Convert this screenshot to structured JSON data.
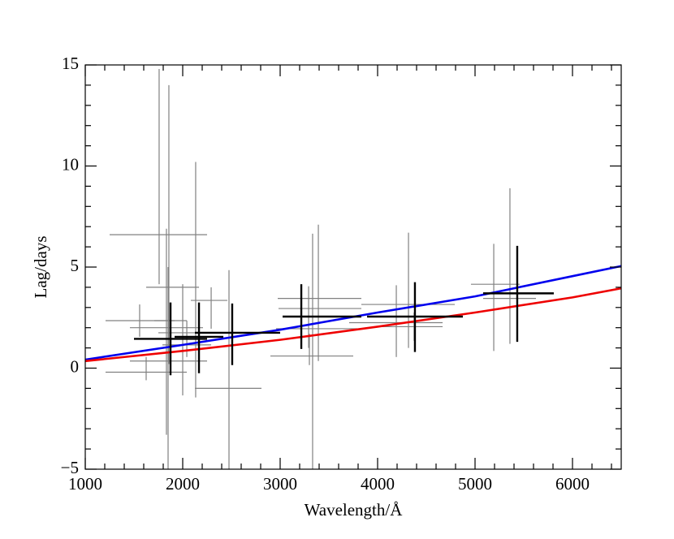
{
  "chart_data": {
    "type": "scatter",
    "xlabel": "Wavelength/Å",
    "ylabel": "Lag/days",
    "xlim": [
      1000,
      6500
    ],
    "ylim": [
      -5,
      15
    ],
    "xticks": [
      1000,
      2000,
      3000,
      4000,
      5000,
      6000
    ],
    "yticks": [
      {
        "value": -5,
        "label": "−5"
      },
      0,
      5,
      10,
      15
    ],
    "xminorticks": [
      1200,
      1400,
      1600,
      1800,
      2200,
      2400,
      2600,
      2800,
      3200,
      3400,
      3600,
      3800,
      4200,
      4400,
      4600,
      4800,
      5200,
      5400,
      5600,
      5800,
      6200,
      6400
    ],
    "yminorticks": [
      -4,
      -3,
      -2,
      -1,
      1,
      2,
      3,
      4,
      6,
      7,
      8,
      9,
      11,
      12,
      13,
      14
    ],
    "crosses": [
      {
        "color": "#808080",
        "width": 1.2,
        "x": [
          1758,
          1858,
          1833,
          1850,
          2000,
          2133,
          2042,
          2292,
          2475,
          1558,
          1625,
          3333,
          3392,
          3292,
          3300,
          4192,
          4317,
          4375,
          5192,
          5358
        ],
        "xlo": [
          1250,
          1708,
          1458,
          1458,
          1625,
          1750,
          1792,
          2083,
          2125,
          1208,
          1208,
          2958,
          2975,
          2983,
          2900,
          3708,
          3833,
          4042,
          4958,
          5083
        ],
        "xhi": [
          2250,
          2042,
          2208,
          2250,
          2167,
          2375,
          2292,
          2458,
          2808,
          1917,
          2042,
          3792,
          3833,
          3833,
          3750,
          4667,
          4792,
          4667,
          5458,
          5625
        ],
        "y": [
          6.6,
          2.35,
          2.0,
          0.35,
          4.0,
          1.75,
          1.15,
          3.35,
          -1.0,
          2.35,
          -0.2,
          1.95,
          3.45,
          2.95,
          0.6,
          2.25,
          3.15,
          2.05,
          4.15,
          3.45
        ],
        "ylo": [
          4.15,
          0.2,
          -3.3,
          -5,
          -1.35,
          -1.45,
          0.55,
          1.95,
          -5,
          1.55,
          -0.6,
          -5,
          0.35,
          1.0,
          0.15,
          0.55,
          1.0,
          1.35,
          0.85,
          1.2
        ],
        "yhi": [
          14.8,
          14.0,
          6.9,
          5.0,
          4.15,
          10.2,
          2.35,
          4.0,
          4.85,
          3.15,
          0.55,
          6.65,
          7.1,
          4.05,
          1.7,
          4.1,
          6.7,
          2.75,
          6.15,
          8.9
        ]
      },
      {
        "color": "#000000",
        "width": 2.4,
        "x": [
          1875,
          2167,
          2508,
          3217,
          4383,
          5433
        ],
        "xlo": [
          1500,
          1917,
          2125,
          3025,
          3892,
          5083
        ],
        "xhi": [
          2250,
          2417,
          3000,
          3833,
          4875,
          5808
        ],
        "y": [
          1.45,
          1.55,
          1.75,
          2.55,
          2.55,
          3.7
        ],
        "ylo": [
          -0.35,
          -0.25,
          0.15,
          0.95,
          0.8,
          1.3
        ],
        "yhi": [
          3.25,
          3.25,
          3.2,
          4.15,
          4.25,
          6.05
        ]
      }
    ],
    "lines": [
      {
        "color": "#0000ee",
        "x": [
          1000,
          2000,
          3000,
          4000,
          5000,
          6000,
          6500
        ],
        "values": [
          0.42,
          1.15,
          1.9,
          2.75,
          3.55,
          4.55,
          5.05
        ]
      },
      {
        "color": "#ee0000",
        "x": [
          1000,
          2000,
          3000,
          4000,
          5000,
          6000,
          6500
        ],
        "values": [
          0.35,
          0.85,
          1.4,
          2.05,
          2.75,
          3.5,
          3.95
        ]
      }
    ]
  }
}
